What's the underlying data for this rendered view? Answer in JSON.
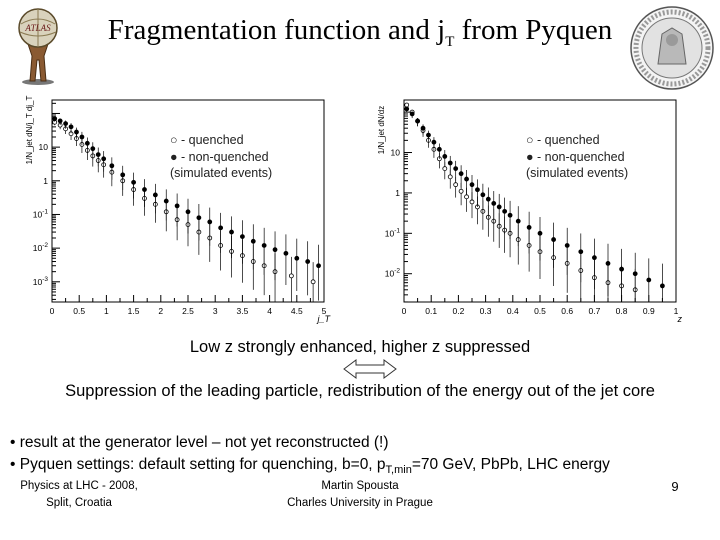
{
  "slide": {
    "title_main": "Fragmentation function and j",
    "title_sub": "T",
    "title_end": " from Pyquen",
    "emphasis_line": "Low z strongly enhanced, higher z suppressed",
    "explanation_line": "Suppression of the leading particle, redistribution of the energy out of the jet core",
    "bullets": [
      {
        "marker": "•",
        "text": "result at the generator level – not yet reconstructed (!)"
      },
      {
        "marker": "•",
        "pre": "Pyquen settings: default setting for quenching, b=0, p",
        "sub": "T,min",
        "post": "=70 GeV, PbPb, LHC energy"
      }
    ],
    "footer": {
      "left_line1": "Physics at LHC - 2008,",
      "left_line2": "Split, Croatia",
      "center_line1": "Martin Spousta",
      "center_line2": "Charles University in Prague",
      "page_number": "9"
    },
    "logo_left_text": "ATLAS"
  },
  "chart_data": [
    {
      "type": "scatter",
      "xlabel": "j_T",
      "ylabel": "1/N_jet dN/j_T dj_T",
      "xlim": [
        0,
        5
      ],
      "ylim_log10": [
        -3.6,
        2.4
      ],
      "log_y": true,
      "legend": [
        "○ - quenched",
        "● - non-quenched",
        "(simulated events)"
      ],
      "xticks": [
        "0",
        "0.5",
        "1",
        "1.5",
        "2",
        "2.5",
        "3",
        "3.5",
        "4",
        "4.5",
        "5"
      ],
      "yticks": [
        {
          "label": "10",
          "exp": "",
          "log": 1
        },
        {
          "label": "1",
          "exp": "",
          "log": 0
        },
        {
          "label": "10",
          "exp": "-1",
          "log": -1
        },
        {
          "label": "10",
          "exp": "-2",
          "log": -2
        },
        {
          "label": "10",
          "exp": "-3",
          "log": -3
        }
      ],
      "series": [
        {
          "name": "quenched",
          "points": [
            [
              0.05,
              55
            ],
            [
              0.15,
              45
            ],
            [
              0.25,
              35
            ],
            [
              0.35,
              25
            ],
            [
              0.45,
              18
            ],
            [
              0.55,
              12
            ],
            [
              0.65,
              8
            ],
            [
              0.75,
              5.5
            ],
            [
              0.85,
              4
            ],
            [
              0.95,
              3
            ],
            [
              1.1,
              1.8
            ],
            [
              1.3,
              1
            ],
            [
              1.5,
              0.55
            ],
            [
              1.7,
              0.3
            ],
            [
              1.9,
              0.2
            ],
            [
              2.1,
              0.12
            ],
            [
              2.3,
              0.07
            ],
            [
              2.5,
              0.05
            ],
            [
              2.7,
              0.03
            ],
            [
              2.9,
              0.02
            ],
            [
              3.1,
              0.012
            ],
            [
              3.3,
              0.008
            ],
            [
              3.5,
              0.006
            ],
            [
              3.7,
              0.004
            ],
            [
              3.9,
              0.003
            ],
            [
              4.1,
              0.002
            ],
            [
              4.4,
              0.0015
            ],
            [
              4.8,
              0.001
            ]
          ]
        },
        {
          "name": "non-quenched",
          "points": [
            [
              0.05,
              70
            ],
            [
              0.15,
              60
            ],
            [
              0.25,
              50
            ],
            [
              0.35,
              40
            ],
            [
              0.45,
              28
            ],
            [
              0.55,
              20
            ],
            [
              0.65,
              13
            ],
            [
              0.75,
              9
            ],
            [
              0.85,
              6
            ],
            [
              0.95,
              4.5
            ],
            [
              1.1,
              2.8
            ],
            [
              1.3,
              1.5
            ],
            [
              1.5,
              0.9
            ],
            [
              1.7,
              0.55
            ],
            [
              1.9,
              0.38
            ],
            [
              2.1,
              0.25
            ],
            [
              2.3,
              0.18
            ],
            [
              2.5,
              0.12
            ],
            [
              2.7,
              0.08
            ],
            [
              2.9,
              0.06
            ],
            [
              3.1,
              0.04
            ],
            [
              3.3,
              0.03
            ],
            [
              3.5,
              0.022
            ],
            [
              3.7,
              0.016
            ],
            [
              3.9,
              0.012
            ],
            [
              4.1,
              0.009
            ],
            [
              4.3,
              0.007
            ],
            [
              4.5,
              0.005
            ],
            [
              4.7,
              0.004
            ],
            [
              4.9,
              0.003
            ]
          ]
        }
      ]
    },
    {
      "type": "scatter",
      "xlabel": "z",
      "ylabel": "1/N_jet dN/dz",
      "xlim": [
        0,
        1
      ],
      "ylim_log10": [
        -2.7,
        2.3
      ],
      "log_y": true,
      "legend": [
        "○ - quenched",
        "● - non-quenched",
        "(simulated events)"
      ],
      "xticks": [
        "0",
        "0.1",
        "0.2",
        "0.3",
        "0.4",
        "0.5",
        "0.6",
        "0.7",
        "0.8",
        "0.9",
        "1"
      ],
      "yticks": [
        {
          "label": "10",
          "exp": "",
          "log": 1
        },
        {
          "label": "1",
          "exp": "",
          "log": 0
        },
        {
          "label": "10",
          "exp": "-1",
          "log": -1
        },
        {
          "label": "10",
          "exp": "-2",
          "log": -2
        }
      ],
      "series": [
        {
          "name": "quenched",
          "points": [
            [
              0.01,
              150
            ],
            [
              0.03,
              100
            ],
            [
              0.05,
              60
            ],
            [
              0.07,
              35
            ],
            [
              0.09,
              20
            ],
            [
              0.11,
              12
            ],
            [
              0.13,
              7
            ],
            [
              0.15,
              4
            ],
            [
              0.17,
              2.5
            ],
            [
              0.19,
              1.6
            ],
            [
              0.21,
              1.1
            ],
            [
              0.23,
              0.8
            ],
            [
              0.25,
              0.6
            ],
            [
              0.27,
              0.45
            ],
            [
              0.29,
              0.35
            ],
            [
              0.31,
              0.25
            ],
            [
              0.33,
              0.2
            ],
            [
              0.35,
              0.15
            ],
            [
              0.37,
              0.12
            ],
            [
              0.39,
              0.1
            ],
            [
              0.42,
              0.07
            ],
            [
              0.46,
              0.05
            ],
            [
              0.5,
              0.035
            ],
            [
              0.55,
              0.025
            ],
            [
              0.6,
              0.018
            ],
            [
              0.65,
              0.012
            ],
            [
              0.7,
              0.008
            ],
            [
              0.75,
              0.006
            ],
            [
              0.8,
              0.005
            ],
            [
              0.85,
              0.004
            ]
          ]
        },
        {
          "name": "non-quenched",
          "points": [
            [
              0.01,
              120
            ],
            [
              0.03,
              90
            ],
            [
              0.05,
              60
            ],
            [
              0.07,
              40
            ],
            [
              0.09,
              27
            ],
            [
              0.11,
              18
            ],
            [
              0.13,
              12
            ],
            [
              0.15,
              8
            ],
            [
              0.17,
              5.5
            ],
            [
              0.19,
              4
            ],
            [
              0.21,
              3
            ],
            [
              0.23,
              2.2
            ],
            [
              0.25,
              1.6
            ],
            [
              0.27,
              1.2
            ],
            [
              0.29,
              0.9
            ],
            [
              0.31,
              0.7
            ],
            [
              0.33,
              0.55
            ],
            [
              0.35,
              0.45
            ],
            [
              0.37,
              0.35
            ],
            [
              0.39,
              0.28
            ],
            [
              0.42,
              0.2
            ],
            [
              0.46,
              0.14
            ],
            [
              0.5,
              0.1
            ],
            [
              0.55,
              0.07
            ],
            [
              0.6,
              0.05
            ],
            [
              0.65,
              0.035
            ],
            [
              0.7,
              0.025
            ],
            [
              0.75,
              0.018
            ],
            [
              0.8,
              0.013
            ],
            [
              0.85,
              0.01
            ],
            [
              0.9,
              0.007
            ],
            [
              0.95,
              0.005
            ]
          ]
        }
      ]
    }
  ]
}
